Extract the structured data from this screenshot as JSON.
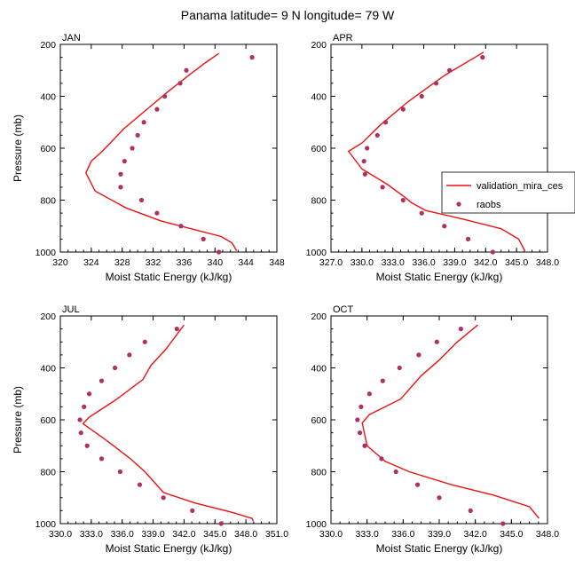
{
  "figure": {
    "title": "Panama  latitude= 9 N longitude= 79 W"
  },
  "legend": {
    "entries": [
      {
        "label": "validation_mira_ces",
        "style": "line",
        "color": "#ee1111"
      },
      {
        "label": "raobs",
        "style": "marker",
        "color": "#b03060"
      }
    ]
  },
  "chart_data": [
    {
      "type": "line",
      "panel": "JAN",
      "title": "JAN",
      "xlabel": "Moist Static Energy (kJ/kg)",
      "ylabel": "Pressure (mb)",
      "xlim": [
        320,
        348
      ],
      "xticks": [
        "320",
        "324",
        "328",
        "332",
        "336",
        "340",
        "344",
        "348"
      ],
      "xtick_values": [
        320,
        324,
        328,
        332,
        336,
        340,
        344,
        348
      ],
      "ylim": [
        1000,
        200
      ],
      "yticks": [
        "200",
        "400",
        "600",
        "800",
        "1000"
      ],
      "ytick_values": [
        200,
        400,
        600,
        800,
        1000
      ],
      "series": [
        {
          "name": "validation_mira_ces",
          "kind": "line",
          "x": [
            340.5,
            338.8,
            336.8,
            334.0,
            331.2,
            328.2,
            325.5,
            324.0,
            323.3,
            324.5,
            328.5,
            333.0,
            337.5,
            340.8,
            342.2,
            342.8
          ],
          "y": [
            235,
            270,
            315,
            380,
            450,
            525,
            610,
            650,
            695,
            765,
            830,
            880,
            915,
            940,
            965,
            995
          ]
        },
        {
          "name": "raobs",
          "kind": "scatter",
          "x": [
            344.8,
            336.3,
            335.5,
            333.5,
            332.5,
            330.8,
            330.0,
            329.3,
            328.3,
            327.8,
            327.8,
            330.5,
            332.5,
            335.6,
            338.5,
            340.5
          ],
          "y": [
            250,
            300,
            350,
            400,
            450,
            500,
            550,
            600,
            650,
            700,
            750,
            800,
            850,
            900,
            950,
            1000
          ]
        }
      ]
    },
    {
      "type": "line",
      "panel": "APR",
      "title": "APR",
      "xlabel": "Moist Static Energy (kJ/kg)",
      "ylabel": "",
      "xlim": [
        327.0,
        348.0
      ],
      "xticks": [
        "327.0",
        "330.0",
        "333.0",
        "336.0",
        "339.0",
        "342.0",
        "345.0",
        "348.0"
      ],
      "xtick_values": [
        327.0,
        330.0,
        333.0,
        336.0,
        339.0,
        342.0,
        345.0,
        348.0
      ],
      "ylim": [
        1000,
        200
      ],
      "yticks": [
        "200",
        "400",
        "600",
        "800",
        "1000"
      ],
      "ytick_values": [
        200,
        400,
        600,
        800,
        1000
      ],
      "series": [
        {
          "name": "validation_mira_ces",
          "kind": "line",
          "x": [
            341.8,
            338.0,
            334.5,
            331.8,
            330.0,
            328.7,
            330.0,
            332.5,
            334.2,
            334.8,
            336.2,
            340.0,
            343.5,
            345.2,
            345.8
          ],
          "y": [
            230,
            320,
            420,
            510,
            580,
            612,
            680,
            740,
            790,
            810,
            840,
            875,
            910,
            950,
            995
          ]
        },
        {
          "name": "raobs",
          "kind": "scatter",
          "x": [
            341.7,
            338.5,
            337.2,
            335.8,
            334.0,
            332.3,
            331.5,
            330.5,
            330.2,
            330.3,
            332.0,
            334.0,
            335.8,
            338.0,
            340.3,
            342.7
          ],
          "y": [
            250,
            300,
            350,
            400,
            450,
            500,
            550,
            600,
            650,
            700,
            750,
            800,
            850,
            900,
            950,
            1000
          ]
        }
      ]
    },
    {
      "type": "line",
      "panel": "JUL",
      "title": "JUL",
      "xlabel": "Moist Static Energy (kJ/kg)",
      "ylabel": "Pressure (mb)",
      "xlim": [
        330.0,
        351.0
      ],
      "xticks": [
        "330.0",
        "333.0",
        "336.0",
        "339.0",
        "342.0",
        "345.0",
        "348.0",
        "351.0"
      ],
      "xtick_values": [
        330.0,
        333.0,
        336.0,
        339.0,
        342.0,
        345.0,
        348.0,
        351.0
      ],
      "ylim": [
        1000,
        200
      ],
      "yticks": [
        "200",
        "400",
        "600",
        "800",
        "1000"
      ],
      "ytick_values": [
        200,
        400,
        600,
        800,
        1000
      ],
      "series": [
        {
          "name": "validation_mira_ces",
          "kind": "line",
          "x": [
            342.0,
            340.2,
            338.8,
            338.0,
            335.5,
            332.8,
            332.2,
            334.5,
            336.8,
            338.2,
            340.0,
            343.0,
            346.5,
            348.6,
            348.7
          ],
          "y": [
            235,
            330,
            390,
            445,
            520,
            590,
            615,
            680,
            750,
            800,
            880,
            920,
            955,
            980,
            990
          ]
        },
        {
          "name": "raobs",
          "kind": "scatter",
          "x": [
            341.3,
            338.2,
            336.7,
            335.3,
            334.0,
            332.8,
            332.3,
            331.9,
            332.0,
            332.6,
            334.0,
            335.8,
            337.7,
            340.0,
            342.8,
            345.6
          ],
          "y": [
            250,
            300,
            350,
            400,
            450,
            500,
            550,
            600,
            650,
            700,
            750,
            800,
            850,
            900,
            950,
            1000
          ]
        }
      ]
    },
    {
      "type": "line",
      "panel": "OCT",
      "title": "OCT",
      "xlabel": "Moist Static Energy (kJ/kg)",
      "ylabel": "",
      "xlim": [
        330.0,
        348.0
      ],
      "xticks": [
        "330.0",
        "333.0",
        "336.0",
        "339.0",
        "342.0",
        "345.0",
        "348.0"
      ],
      "xtick_values": [
        330.0,
        333.0,
        336.0,
        339.0,
        342.0,
        345.0,
        348.0
      ],
      "ylim": [
        1000,
        200
      ],
      "yticks": [
        "200",
        "400",
        "600",
        "800",
        "1000"
      ],
      "ytick_values": [
        200,
        400,
        600,
        800,
        1000
      ],
      "series": [
        {
          "name": "validation_mira_ces",
          "kind": "line",
          "x": [
            342.2,
            340.5,
            339.0,
            337.5,
            335.8,
            333.2,
            332.6,
            333.0,
            334.5,
            336.5,
            340.0,
            343.5,
            346.5,
            347.3
          ],
          "y": [
            235,
            300,
            370,
            430,
            520,
            580,
            612,
            700,
            760,
            800,
            850,
            890,
            935,
            980
          ]
        },
        {
          "name": "raobs",
          "kind": "scatter",
          "x": [
            340.8,
            338.8,
            337.3,
            335.7,
            334.3,
            333.2,
            332.5,
            332.2,
            332.4,
            332.8,
            334.2,
            335.4,
            337.2,
            339.0,
            341.6,
            344.3
          ],
          "y": [
            250,
            300,
            350,
            400,
            450,
            500,
            550,
            600,
            650,
            700,
            750,
            800,
            850,
            900,
            950,
            1000
          ]
        }
      ]
    }
  ]
}
